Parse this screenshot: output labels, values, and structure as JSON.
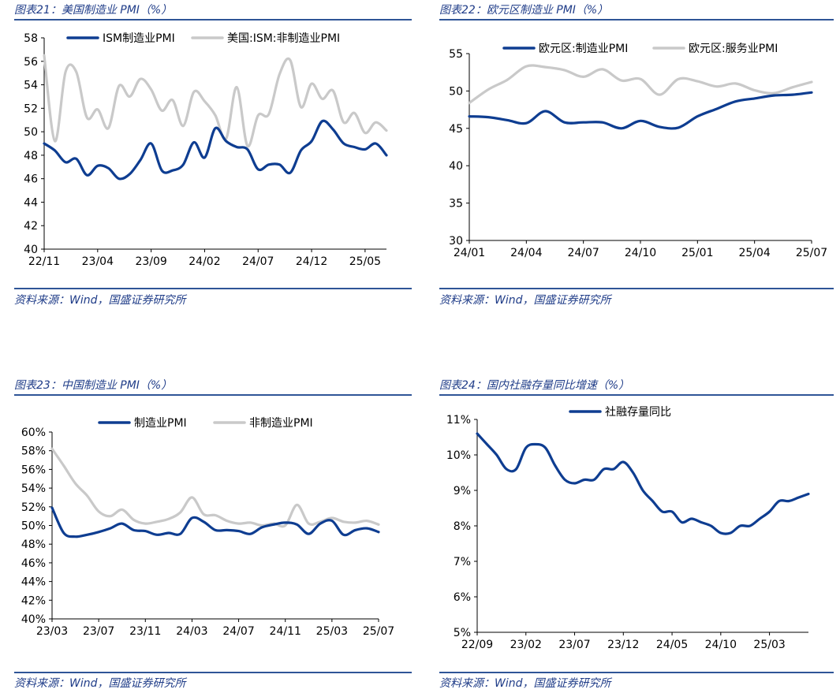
{
  "colors": {
    "primary": "#0e3d91",
    "secondary": "#c9c9c9",
    "rule": "#2f5597",
    "title": "#1f3c88"
  },
  "source_text": "资料来源：Wind，国盛证券研究所",
  "chart_data": [
    {
      "id": "c21",
      "heading": "图表21：美国制造业 PMI（%）",
      "type": "line",
      "ylim": [
        40,
        58
      ],
      "yticks": [
        "40",
        "42",
        "44",
        "46",
        "48",
        "50",
        "52",
        "54",
        "56",
        "58"
      ],
      "xlabels": [
        "22/11",
        "23/04",
        "23/09",
        "24/02",
        "24/07",
        "24/12",
        "25/05"
      ],
      "xlabel_index": [
        0,
        5,
        10,
        15,
        20,
        25,
        30
      ],
      "n": 33,
      "legend": "top-center",
      "series": [
        {
          "name": "ISM制造业PMI",
          "color": "#0e3d91",
          "values": [
            49.0,
            48.4,
            47.4,
            47.7,
            46.3,
            47.1,
            46.9,
            46.0,
            46.4,
            47.6,
            49.0,
            46.7,
            46.7,
            47.2,
            49.1,
            47.8,
            50.3,
            49.2,
            48.7,
            48.5,
            46.8,
            47.2,
            47.2,
            46.5,
            48.4,
            49.2,
            50.9,
            50.2,
            49.0,
            48.7,
            48.5,
            49.0,
            48.0
          ]
        },
        {
          "name": "美国:ISM:非制造业PMI",
          "color": "#c9c9c9",
          "values": [
            56.5,
            49.2,
            55.1,
            55.1,
            51.2,
            51.9,
            50.3,
            53.9,
            53.0,
            54.5,
            53.6,
            51.8,
            52.7,
            50.5,
            53.4,
            52.6,
            51.4,
            49.4,
            53.8,
            48.8,
            51.4,
            51.5,
            54.9,
            56.1,
            52.1,
            54.1,
            52.8,
            53.5,
            50.8,
            51.6,
            49.9,
            50.8,
            50.1
          ]
        }
      ]
    },
    {
      "id": "c22",
      "heading": "图表22：欧元区制造业 PMI（%）",
      "type": "line",
      "ylim": [
        30,
        55
      ],
      "yticks": [
        "30",
        "35",
        "40",
        "45",
        "50",
        "55"
      ],
      "xlabels": [
        "24/01",
        "24/04",
        "24/07",
        "24/10",
        "25/01",
        "25/04",
        "25/07"
      ],
      "xlabel_index": [
        0,
        3,
        6,
        9,
        12,
        15,
        18
      ],
      "n": 19,
      "legend": "top-center",
      "series": [
        {
          "name": "欧元区:制造业PMI",
          "color": "#0e3d91",
          "values": [
            46.6,
            46.5,
            46.1,
            45.7,
            47.3,
            45.8,
            45.8,
            45.8,
            45.0,
            46.0,
            45.2,
            45.1,
            46.6,
            47.6,
            48.6,
            49.0,
            49.4,
            49.5,
            49.8
          ]
        },
        {
          "name": "欧元区:服务业PMI",
          "color": "#c9c9c9",
          "values": [
            48.4,
            50.2,
            51.5,
            53.3,
            53.2,
            52.8,
            51.9,
            52.9,
            51.4,
            51.6,
            49.5,
            51.6,
            51.3,
            50.6,
            51.0,
            50.1,
            49.7,
            50.5,
            51.2
          ]
        }
      ]
    },
    {
      "id": "c23",
      "heading": "图表23：中国制造业 PMI（%）",
      "type": "line",
      "ylim": [
        40,
        60
      ],
      "yticks": [
        "40%",
        "42%",
        "44%",
        "46%",
        "48%",
        "50%",
        "52%",
        "54%",
        "56%",
        "58%",
        "60%"
      ],
      "xlabels": [
        "23/03",
        "23/07",
        "23/11",
        "24/03",
        "24/07",
        "24/11",
        "25/03",
        "25/07"
      ],
      "xlabel_index": [
        0,
        4,
        8,
        12,
        16,
        20,
        24,
        28
      ],
      "n": 29,
      "legend": "top-center",
      "series": [
        {
          "name": "制造业PMI",
          "color": "#0e3d91",
          "values": [
            51.9,
            49.2,
            48.8,
            49.0,
            49.3,
            49.7,
            50.2,
            49.5,
            49.4,
            49.0,
            49.2,
            49.1,
            50.8,
            50.4,
            49.5,
            49.5,
            49.4,
            49.1,
            49.8,
            50.1,
            50.3,
            50.1,
            49.1,
            50.2,
            50.5,
            49.0,
            49.5,
            49.7,
            49.3
          ]
        },
        {
          "name": "非制造业PMI",
          "color": "#c9c9c9",
          "values": [
            58.2,
            56.4,
            54.5,
            53.2,
            51.5,
            51.0,
            51.7,
            50.6,
            50.2,
            50.4,
            50.7,
            51.4,
            53.0,
            51.2,
            51.1,
            50.5,
            50.2,
            50.3,
            50.0,
            50.2,
            50.0,
            52.2,
            50.2,
            50.4,
            50.8,
            50.4,
            50.3,
            50.5,
            50.1
          ]
        }
      ]
    },
    {
      "id": "c24",
      "heading": "图表24：国内社融存量同比增速（%）",
      "type": "line",
      "ylim": [
        5,
        11
      ],
      "yticks": [
        "5%",
        "6%",
        "7%",
        "8%",
        "9%",
        "10%",
        "11%"
      ],
      "xlabels": [
        "22/09",
        "23/02",
        "23/07",
        "23/12",
        "24/05",
        "24/10",
        "25/03"
      ],
      "xlabel_index": [
        0,
        5,
        10,
        15,
        20,
        25,
        30
      ],
      "n": 35,
      "legend": "top-center",
      "series": [
        {
          "name": "社融存量同比",
          "color": "#0e3d91",
          "values": [
            10.6,
            10.3,
            10.0,
            9.6,
            9.6,
            10.2,
            10.3,
            10.2,
            9.7,
            9.3,
            9.2,
            9.3,
            9.3,
            9.6,
            9.6,
            9.8,
            9.5,
            9.0,
            8.7,
            8.4,
            8.4,
            8.1,
            8.2,
            8.1,
            8.0,
            7.8,
            7.8,
            8.0,
            8.0,
            8.2,
            8.4,
            8.7,
            8.7,
            8.8,
            8.9
          ]
        }
      ]
    }
  ]
}
